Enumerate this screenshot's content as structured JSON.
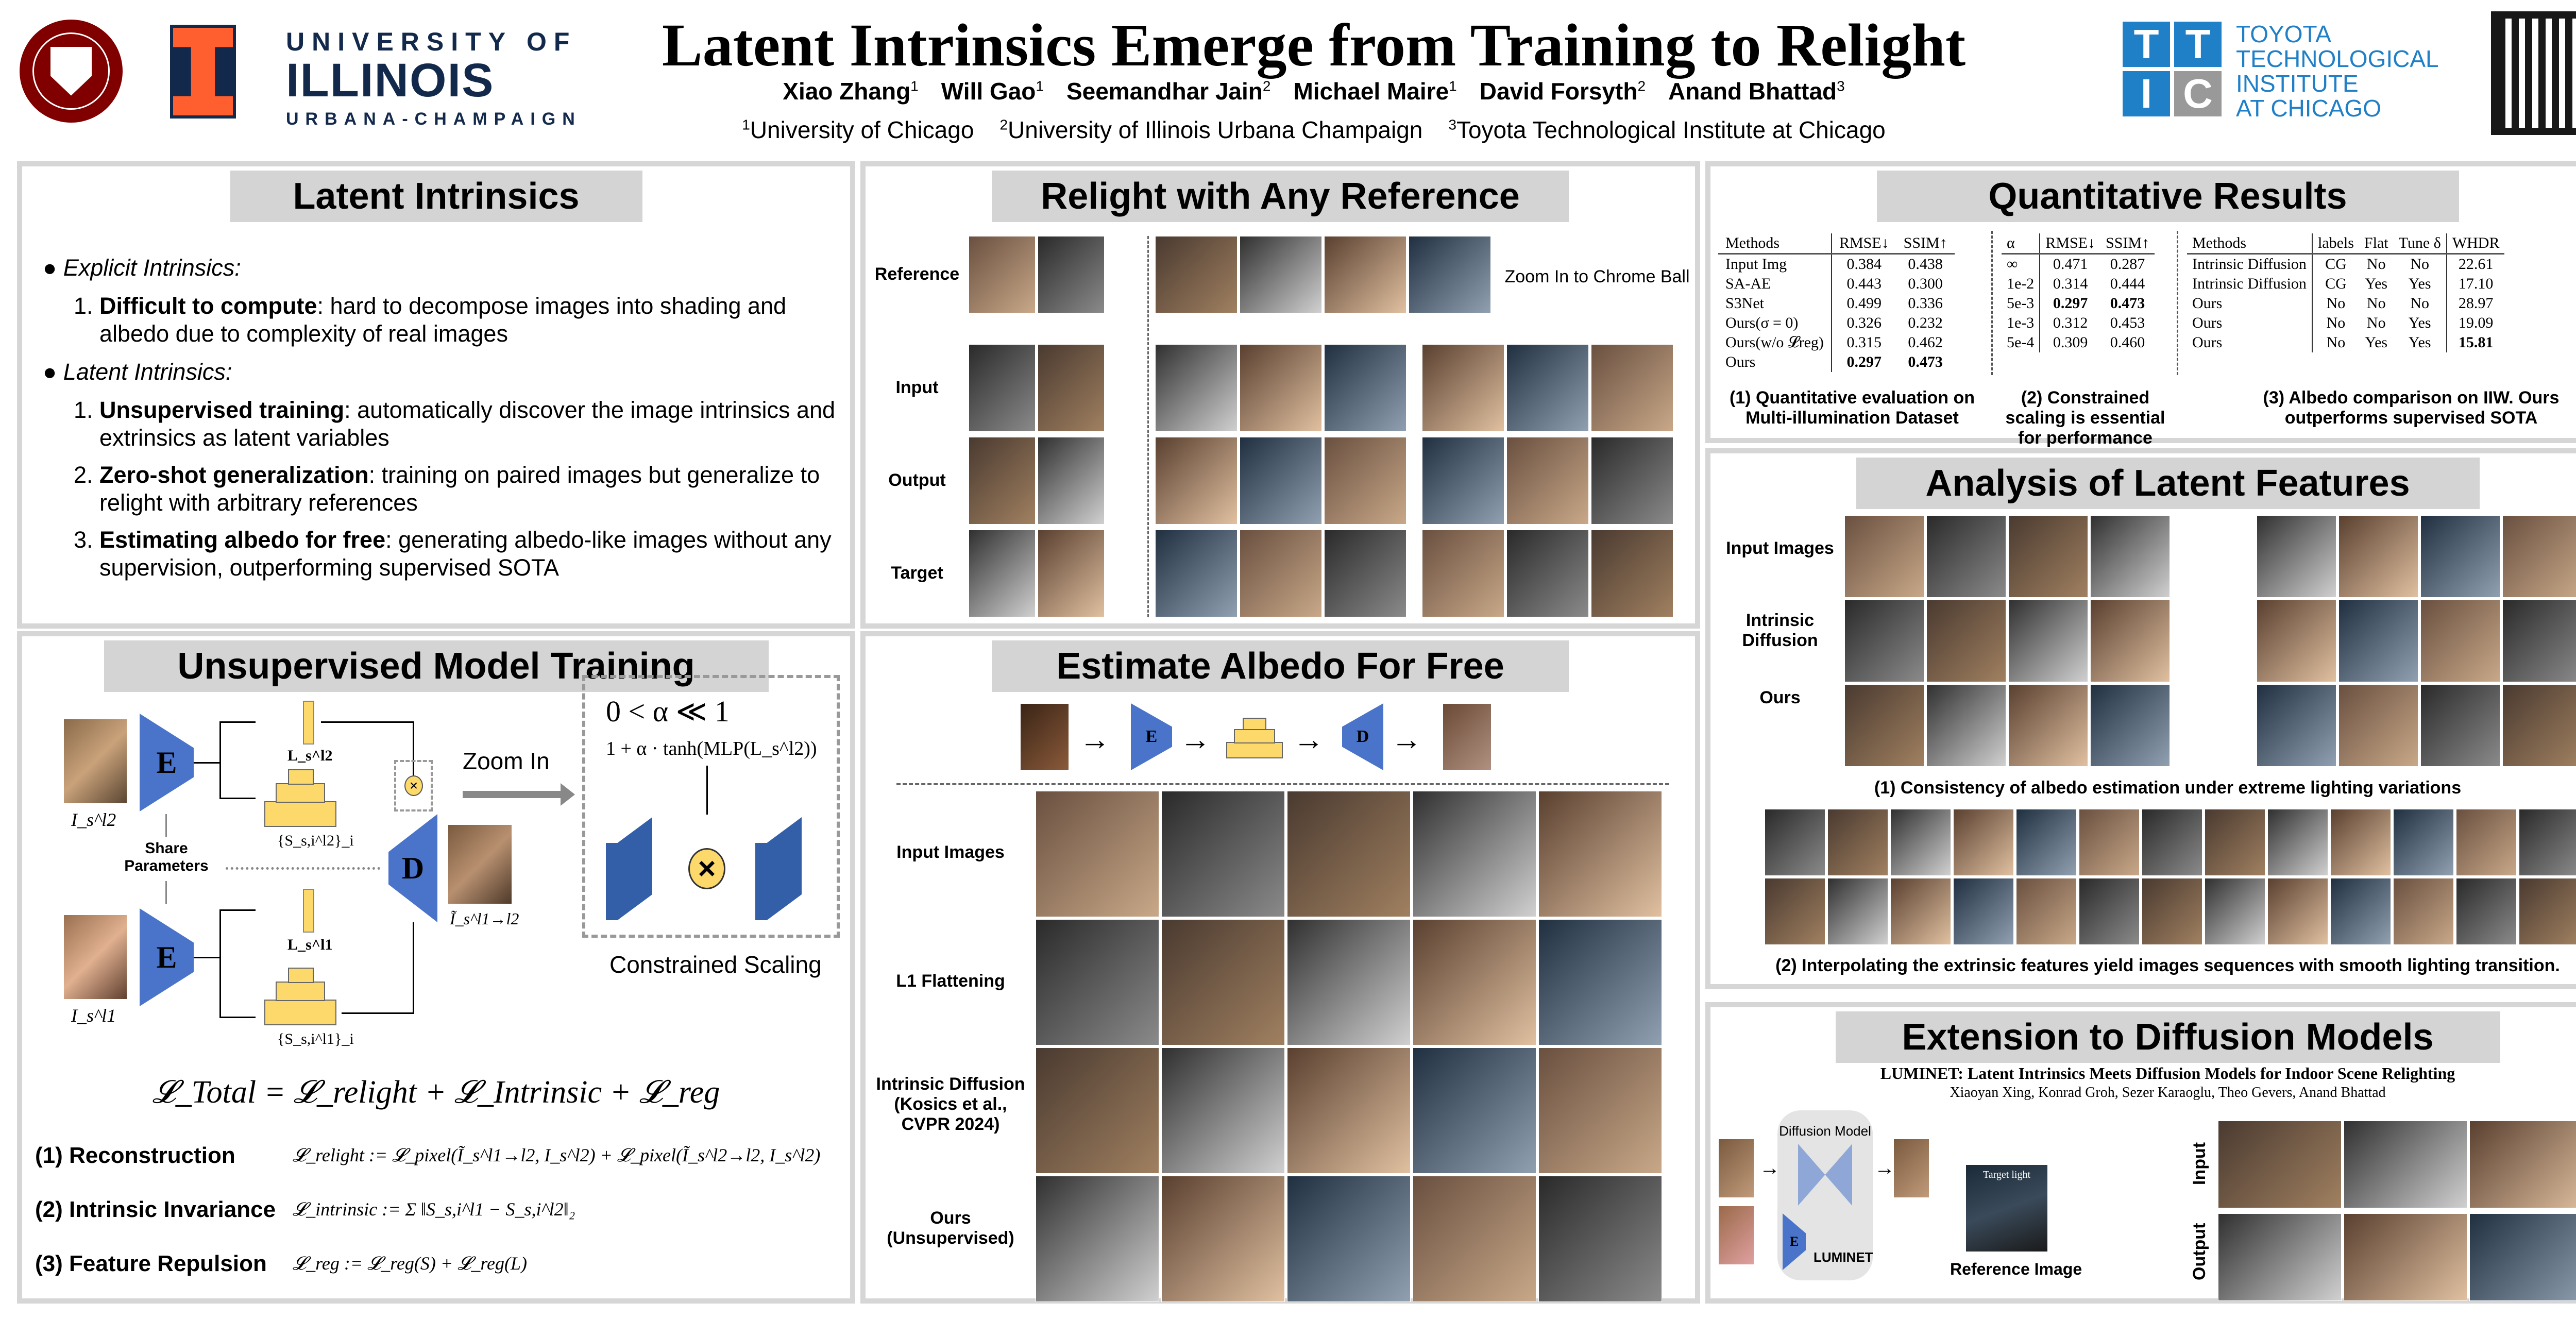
{
  "header": {
    "title": "Latent Intrinsics Emerge from Training to Relight",
    "authors": [
      {
        "name": "Xiao Zhang",
        "aff": "1"
      },
      {
        "name": "Will Gao",
        "aff": "1"
      },
      {
        "name": "Seemandhar Jain",
        "aff": "2"
      },
      {
        "name": "Michael Maire",
        "aff": "1"
      },
      {
        "name": "David Forsyth",
        "aff": "2"
      },
      {
        "name": "Anand Bhattad",
        "aff": "3"
      }
    ],
    "affiliations": [
      {
        "num": "1",
        "name": "University of Chicago"
      },
      {
        "num": "2",
        "name": "University of Illinois Urbana Champaign"
      },
      {
        "num": "3",
        "name": "Toyota Technological Institute at Chicago"
      }
    ],
    "logos": {
      "uchicago": "THE UNIVERSITY OF CHICAGO 1890",
      "illinois_line1": "UNIVERSITY OF",
      "illinois_line2": "ILLINOIS",
      "illinois_line3": "URBANA-CHAMPAIGN",
      "tti_line1": "TOYOTA",
      "tti_line2": "TECHNOLOGICAL",
      "tti_line3": "INSTITUTE",
      "tti_line4": "AT CHICAGO",
      "tti_letters": [
        "T",
        "T",
        "I",
        "C"
      ]
    },
    "colors": {
      "uchicago": "#800000",
      "illinois_orange": "#ff5f2e",
      "illinois_navy": "#13294b",
      "tti_blue": "#1f7fc7"
    }
  },
  "latent": {
    "title": "Latent Intrinsics",
    "explicit_heading": "Explicit Intrinsics:",
    "explicit_items": [
      {
        "bold": "Difficult to compute",
        "text": ": hard to decompose images into shading and albedo due to complexity of real images"
      }
    ],
    "latent_heading": "Latent Intrinsics:",
    "latent_items": [
      {
        "bold": "Unsupervised training",
        "text": ": automatically discover the image intrinsics and extrinsics as latent variables"
      },
      {
        "bold": "Zero-shot generalization",
        "text": ": training on paired images but generalize to relight with arbitrary references"
      },
      {
        "bold": "Estimating albedo for free",
        "text": ": generating albedo-like images without any supervision, outperforming supervised SOTA"
      }
    ]
  },
  "training": {
    "title": "Unsupervised Model Training",
    "encoder": "E",
    "decoder": "D",
    "share": "Share Parameters",
    "zoom_in": "Zoom In",
    "alpha_constraint": "0 < α ≪ 1",
    "scaling_formula": "1 + α · tanh(MLP(L_s^l2))",
    "constrained_scaling": "Constrained Scaling",
    "img_top": "I_s^l2",
    "img_bottom": "I_s^l1",
    "img_out": "Ĩ_s^l1→l2",
    "L_top": "L_s^l2",
    "L_bottom": "L_s^l1",
    "S_top": "{S_s,i^l2}_i",
    "S_bottom": "{S_s,i^l1}_i",
    "multiply": "×",
    "total_loss": "𝓛_Total = 𝓛_relight + 𝓛_Intrinsic + 𝓛_reg",
    "losses": [
      {
        "name": "(1) Reconstruction",
        "formula": "𝓛_relight := 𝓛_pixel(Ĩ_s^l1→l2, I_s^l2) + 𝓛_pixel(Ĩ_s^l2→l2, I_s^l2)"
      },
      {
        "name": "(2) Intrinsic Invariance",
        "formula": "𝓛_intrinsic := Σ ‖S_s,i^l1 − S_s,i^l2‖₂"
      },
      {
        "name": "(3) Feature Repulsion",
        "formula": "𝓛_reg := 𝓛_reg(S) + 𝓛_reg(L)"
      }
    ]
  },
  "relight": {
    "title": "Relight with Any Reference",
    "rows": [
      "Reference",
      "Input",
      "Output",
      "Target"
    ],
    "zoom_note": "Zoom In to Chrome Ball"
  },
  "albedo": {
    "title": "Estimate Albedo For Free",
    "pipeline": [
      "E",
      "D"
    ],
    "rows": [
      "Input Images",
      "L1 Flattening",
      "Intrinsic Diffusion (Kosics et al., CVPR 2024)",
      "Ours (Unsupervised)"
    ]
  },
  "quant": {
    "title": "Quantitative Results",
    "table1": {
      "headers": [
        "Methods",
        "RMSE↓",
        "SSIM↑"
      ],
      "rows": [
        [
          "Input Img",
          "0.384",
          "0.438"
        ],
        [
          "SA-AE",
          "0.443",
          "0.300"
        ],
        [
          "S3Net",
          "0.499",
          "0.336"
        ],
        [
          "Ours(σ = 0)",
          "0.326",
          "0.232"
        ],
        [
          "Ours(w/o 𝓛reg)",
          "0.315",
          "0.462"
        ],
        [
          "Ours",
          "0.297",
          "0.473"
        ]
      ],
      "caption": "(1) Quantitative evaluation on Multi-illumination Dataset"
    },
    "table2": {
      "headers": [
        "α",
        "RMSE↓",
        "SSIM↑"
      ],
      "rows": [
        [
          "∞",
          "0.471",
          "0.287"
        ],
        [
          "1e-2",
          "0.314",
          "0.444"
        ],
        [
          "5e-3",
          "0.297",
          "0.473"
        ],
        [
          "1e-3",
          "0.312",
          "0.453"
        ],
        [
          "5e-4",
          "0.309",
          "0.460"
        ]
      ],
      "caption": "(2) Constrained scaling is essential for performance"
    },
    "table3": {
      "headers": [
        "Methods",
        "labels",
        "Flat",
        "Tune δ",
        "WHDR"
      ],
      "rows": [
        [
          "Intrinsic Diffusion",
          "CG",
          "No",
          "No",
          "22.61"
        ],
        [
          "Intrinsic Diffusion",
          "CG",
          "Yes",
          "Yes",
          "17.10"
        ],
        [
          "Ours",
          "No",
          "No",
          "No",
          "28.97"
        ],
        [
          "Ours",
          "No",
          "No",
          "Yes",
          "19.09"
        ],
        [
          "Ours",
          "No",
          "Yes",
          "Yes",
          "15.81"
        ]
      ],
      "caption": "(3) Albedo comparison on IIW. Ours outperforms supervised SOTA"
    }
  },
  "analysis": {
    "title": "Analysis of Latent Features",
    "rows": [
      "Input Images",
      "Intrinsic Diffusion",
      "Ours"
    ],
    "caption1": "(1) Consistency of albedo estimation under extreme lighting variations",
    "caption2": "(2) Interpolating the extrinsic features yield images sequences with smooth lighting transition."
  },
  "extension": {
    "title": "Extension to Diffusion Models",
    "paper_title": "LUMINET: Latent Intrinsics Meets Diffusion Models for Indoor Scene Relighting",
    "paper_authors": "Xiaoyan Xing, Konrad Groh, Sezer Karaoglu, Theo Gevers, Anand Bhattad",
    "diffusion_model": "Diffusion Model",
    "encoder": "E",
    "luminet": "LUMINET",
    "target_light": "Target light",
    "reference_image": "Reference Image",
    "input_label": "Input",
    "output_label": "Output"
  }
}
